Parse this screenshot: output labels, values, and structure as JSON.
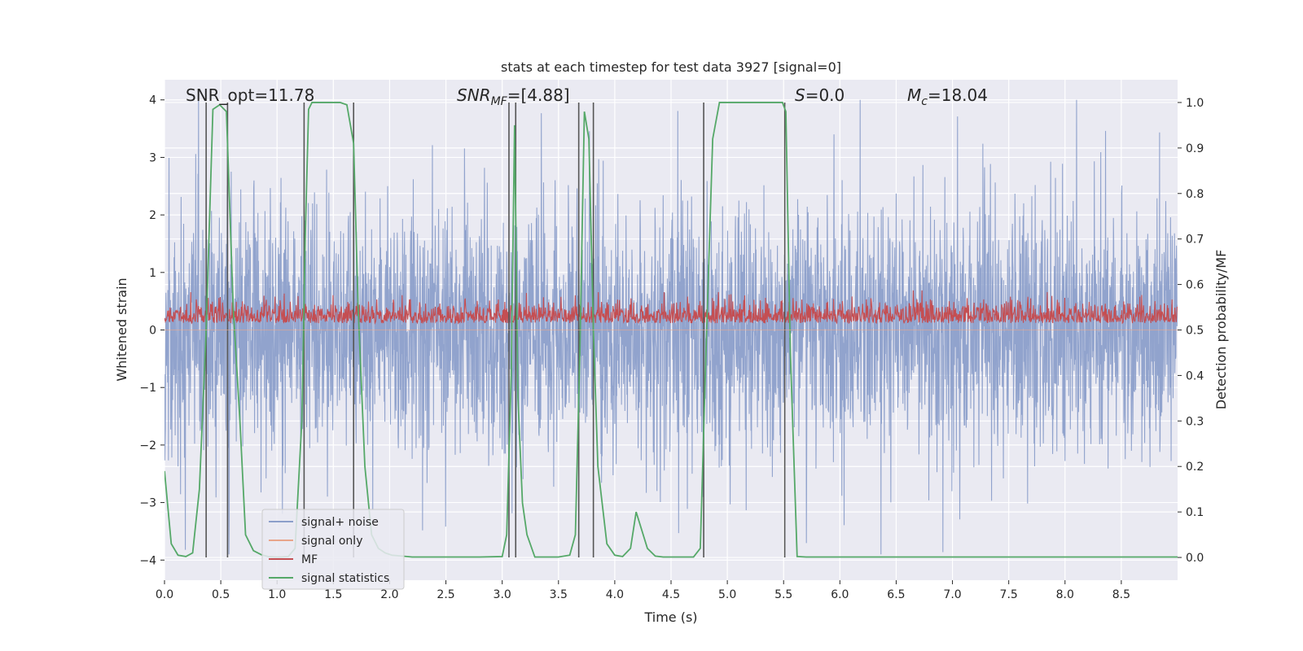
{
  "chart_data": {
    "type": "line",
    "title": "stats at each timestep for test data 3927 [signal=0]",
    "xlabel": "Time (s)",
    "ylabel_left": "Whitened strain",
    "ylabel_right": "Detection probability/MF",
    "xlim": [
      0,
      9
    ],
    "ylim_left": [
      -4.35,
      4.35
    ],
    "ylim_right": [
      -0.05,
      1.05
    ],
    "x_ticks": [
      0,
      0.5,
      1,
      1.5,
      2,
      2.5,
      3,
      3.5,
      4,
      4.5,
      5,
      5.5,
      6,
      6.5,
      7,
      7.5,
      8,
      8.5
    ],
    "x_tick_labels": [
      "0.0",
      "0.5",
      "1.0",
      "1.5",
      "2.0",
      "2.5",
      "3.0",
      "3.5",
      "4.0",
      "4.5",
      "5.0",
      "5.5",
      "6.0",
      "6.5",
      "7.0",
      "7.5",
      "8.0",
      "8.5"
    ],
    "y_left_ticks": [
      4,
      3,
      2,
      1,
      0,
      -1,
      -2,
      -3,
      -4
    ],
    "y_left_tick_labels": [
      "4",
      "3",
      "2",
      "1",
      "0",
      "−1",
      "−2",
      "−3",
      "−4"
    ],
    "y_right_ticks": [
      1.0,
      0.9,
      0.8,
      0.7,
      0.6,
      0.5,
      0.4,
      0.3,
      0.2,
      0.1,
      0.0
    ],
    "y_right_tick_labels": [
      "1.0",
      "0.9",
      "0.8",
      "0.7",
      "0.6",
      "0.5",
      "0.4",
      "0.3",
      "0.2",
      "0.1",
      "0.0"
    ],
    "grid": true,
    "legend_position": "lower-left",
    "annotations": {
      "snr_opt": "SNR_opt=11.78",
      "snr_mf_main": "SNR",
      "snr_mf_sub": "MF",
      "snr_mf_tail": "=[4.88]",
      "s_main": "S",
      "s_tail": "=0.0",
      "mc_main": "M",
      "mc_sub": "c",
      "mc_tail": "=18.04"
    },
    "series": [
      {
        "name": "signal+ noise",
        "color": "#8c9fca",
        "axis": "left",
        "kind": "noise",
        "approx_amplitude": [
          -3.9,
          4.0
        ]
      },
      {
        "name": "signal only",
        "color": "#e8a58a",
        "axis": "left",
        "kind": "flat",
        "values": [
          0,
          0
        ]
      },
      {
        "name": "MF",
        "color": "#c44e52",
        "axis": "right",
        "kind": "noise",
        "approx_range": [
          0.5,
          0.6
        ]
      },
      {
        "name": "signal statistics",
        "color": "#55a868",
        "axis": "right",
        "kind": "line",
        "x": [
          0.0,
          0.06,
          0.12,
          0.19,
          0.25,
          0.31,
          0.37,
          0.43,
          0.49,
          0.55,
          0.61,
          0.67,
          0.72,
          0.79,
          0.86,
          0.92,
          0.98,
          1.04,
          1.1,
          1.16,
          1.22,
          1.25,
          1.28,
          1.31,
          1.34,
          1.37,
          1.43,
          1.5,
          1.56,
          1.62,
          1.68,
          1.72,
          1.78,
          1.84,
          1.9,
          1.96,
          2.02,
          2.2,
          2.5,
          2.8,
          3.0,
          3.04,
          3.08,
          3.11,
          3.14,
          3.18,
          3.22,
          3.29,
          3.35,
          3.5,
          3.6,
          3.65,
          3.69,
          3.73,
          3.77,
          3.81,
          3.85,
          3.93,
          4.0,
          4.07,
          4.14,
          4.19,
          4.24,
          4.29,
          4.36,
          4.43,
          4.55,
          4.7,
          4.76,
          4.81,
          4.87,
          4.93,
          5.0,
          5.2,
          5.4,
          5.49,
          5.52,
          5.56,
          5.62,
          5.7,
          6.0,
          7.0,
          8.0,
          9.0
        ],
        "values": [
          0.19,
          0.03,
          0.005,
          0.002,
          0.01,
          0.15,
          0.5,
          0.985,
          0.995,
          0.98,
          0.55,
          0.3,
          0.05,
          0.015,
          0.006,
          0.002,
          0.001,
          0.001,
          0.002,
          0.02,
          0.3,
          0.7,
          0.985,
          1.0,
          1.0,
          1.0,
          1.0,
          1.0,
          1.0,
          0.995,
          0.91,
          0.55,
          0.2,
          0.05,
          0.02,
          0.01,
          0.005,
          0.001,
          0.001,
          0.001,
          0.002,
          0.05,
          0.4,
          0.95,
          0.35,
          0.12,
          0.05,
          0.001,
          0.001,
          0.001,
          0.005,
          0.05,
          0.45,
          0.98,
          0.92,
          0.5,
          0.2,
          0.03,
          0.005,
          0.002,
          0.02,
          0.1,
          0.06,
          0.02,
          0.003,
          0.001,
          0.001,
          0.001,
          0.02,
          0.45,
          0.92,
          1.0,
          1.0,
          1.0,
          1.0,
          1.0,
          0.98,
          0.45,
          0.002,
          0.001,
          0.001,
          0.001,
          0.001,
          0.001
        ]
      }
    ],
    "vertical_markers": [
      0.37,
      0.56,
      1.24,
      1.68,
      3.06,
      3.12,
      3.68,
      3.81,
      4.79,
      5.51
    ],
    "marker_color": "#555555"
  }
}
